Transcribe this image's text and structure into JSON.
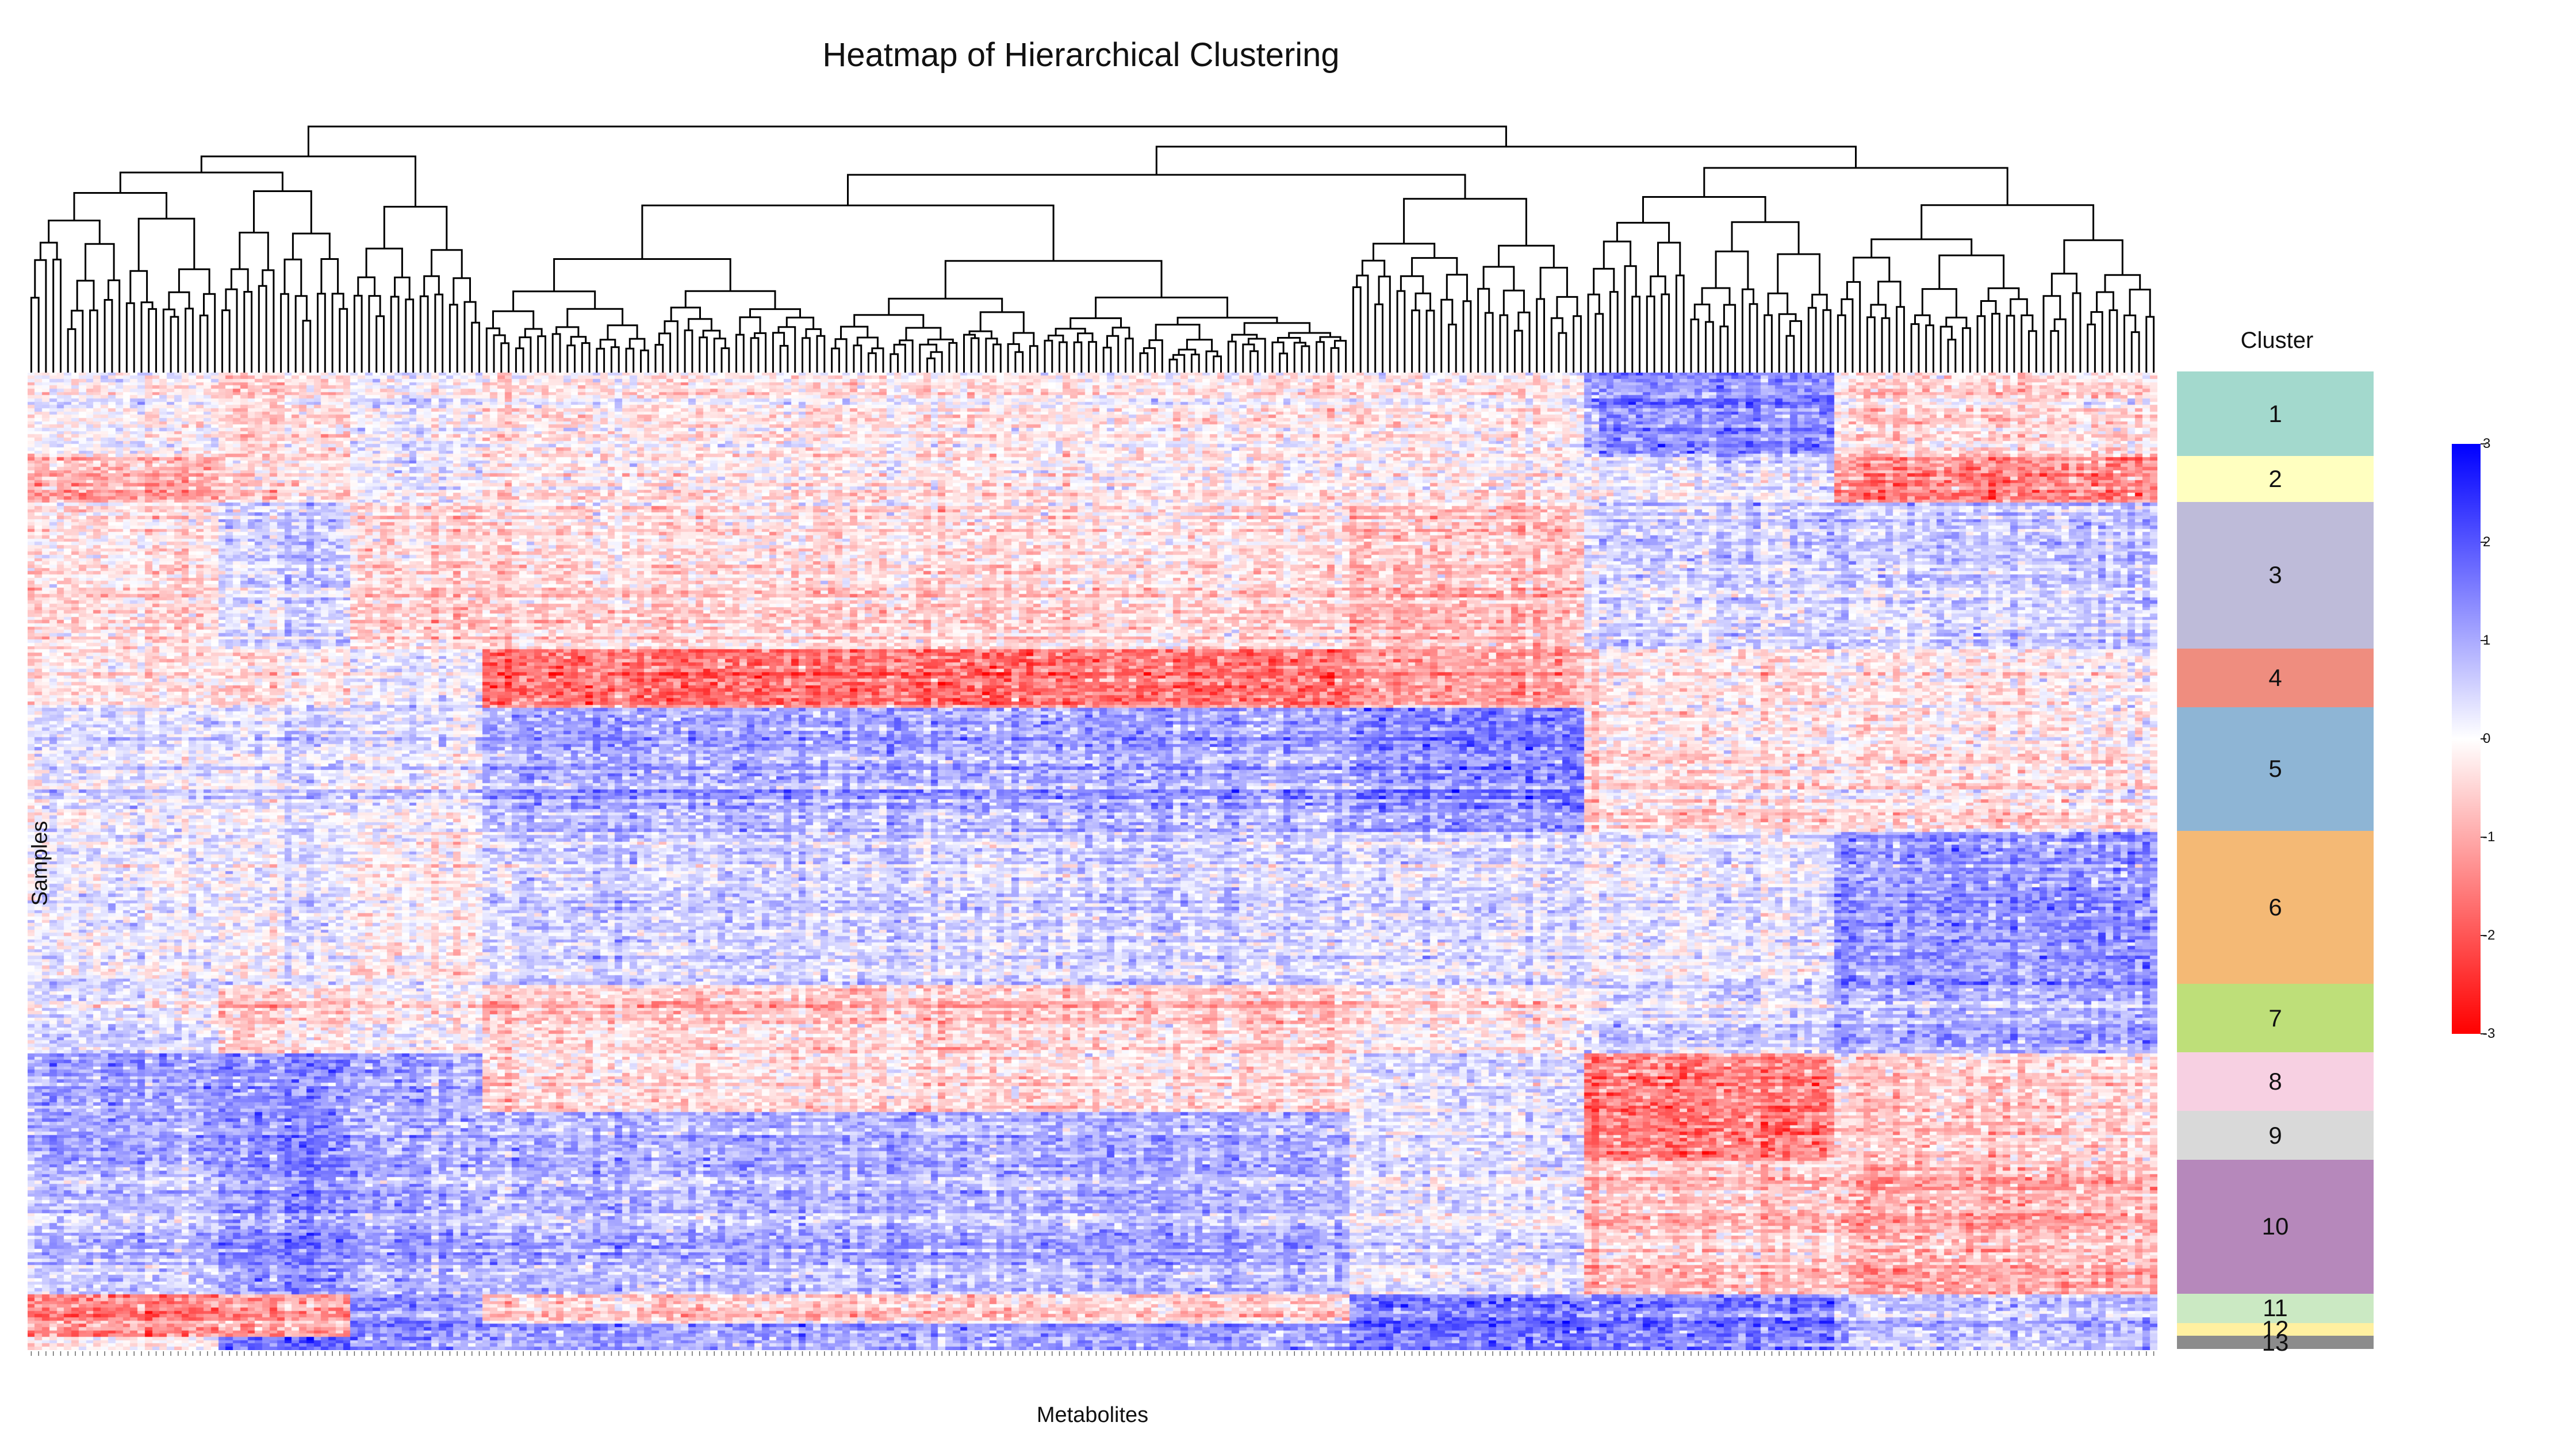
{
  "chart_data": {
    "type": "heatmap",
    "title": "Heatmap of Hierarchical Clustering",
    "xlabel": "Metabolites",
    "ylabel": "Samples",
    "n_columns": 290,
    "n_rows": 300,
    "colorscale": {
      "low": "#ff0000",
      "mid": "#ffffff",
      "high": "#0000ff"
    },
    "colorbar": {
      "range": [
        -3,
        3
      ],
      "ticks": [
        3,
        2,
        1,
        0,
        -1,
        -2,
        -3
      ],
      "placement": "right"
    },
    "legend_title": "Cluster",
    "clusters": [
      {
        "label": "1",
        "color": "#a3d9cd",
        "row_start": 0,
        "row_end": 26
      },
      {
        "label": "2",
        "color": "#ffffc0",
        "row_start": 26,
        "row_end": 40
      },
      {
        "label": "3",
        "color": "#bebbd9",
        "row_start": 40,
        "row_end": 85
      },
      {
        "label": "4",
        "color": "#ef8d7f",
        "row_start": 85,
        "row_end": 103
      },
      {
        "label": "5",
        "color": "#8eb5d5",
        "row_start": 103,
        "row_end": 141
      },
      {
        "label": "6",
        "color": "#f4b975",
        "row_start": 141,
        "row_end": 188
      },
      {
        "label": "7",
        "color": "#bedf79",
        "row_start": 188,
        "row_end": 209
      },
      {
        "label": "8",
        "color": "#f7d0e2",
        "row_start": 209,
        "row_end": 227
      },
      {
        "label": "9",
        "color": "#d9d9d9",
        "row_start": 227,
        "row_end": 242
      },
      {
        "label": "10",
        "color": "#b688bb",
        "row_start": 242,
        "row_end": 283
      },
      {
        "label": "11",
        "color": "#cbe9c3",
        "row_start": 283,
        "row_end": 292
      },
      {
        "label": "12",
        "color": "#fff0a0",
        "row_start": 292,
        "row_end": 296
      },
      {
        "label": "13",
        "color": "#8c8c8c",
        "row_start": 296,
        "row_end": 300
      }
    ],
    "column_groups": [
      {
        "col_start": 0,
        "col_end": 26,
        "pattern": [
          [
            26,
            40,
            -1.3
          ],
          [
            40,
            85,
            -0.4
          ],
          [
            85,
            103,
            -0.3
          ],
          [
            103,
            141,
            0.5
          ],
          [
            141,
            209,
            0.3
          ],
          [
            209,
            242,
            1.3
          ],
          [
            242,
            283,
            0.9
          ],
          [
            283,
            296,
            -1.8
          ]
        ]
      },
      {
        "col_start": 26,
        "col_end": 44,
        "pattern": [
          [
            0,
            40,
            -0.6
          ],
          [
            40,
            85,
            0.6
          ],
          [
            85,
            103,
            -0.4
          ],
          [
            103,
            141,
            0.5
          ],
          [
            141,
            188,
            0.2
          ],
          [
            188,
            209,
            -0.8
          ],
          [
            209,
            283,
            1.6
          ],
          [
            283,
            296,
            -1.5
          ],
          [
            296,
            300,
            2.4
          ]
        ]
      },
      {
        "col_start": 44,
        "col_end": 62,
        "pattern": [
          [
            0,
            40,
            0.2
          ],
          [
            40,
            85,
            -0.6
          ],
          [
            85,
            103,
            0.3
          ],
          [
            103,
            141,
            0.4
          ],
          [
            141,
            209,
            -0.2
          ],
          [
            209,
            283,
            1.2
          ],
          [
            283,
            300,
            1.6
          ]
        ]
      },
      {
        "col_start": 62,
        "col_end": 180,
        "pattern": [
          [
            0,
            40,
            -0.3
          ],
          [
            40,
            85,
            -0.5
          ],
          [
            85,
            103,
            -2.1
          ],
          [
            103,
            141,
            1.4
          ],
          [
            141,
            188,
            0.6
          ],
          [
            188,
            209,
            -0.9
          ],
          [
            209,
            227,
            -0.6
          ],
          [
            227,
            283,
            1.1
          ],
          [
            283,
            292,
            -0.7
          ],
          [
            292,
            300,
            1.4
          ]
        ]
      },
      {
        "col_start": 180,
        "col_end": 212,
        "pattern": [
          [
            0,
            40,
            -0.2
          ],
          [
            40,
            85,
            -0.9
          ],
          [
            85,
            103,
            -1.4
          ],
          [
            103,
            141,
            1.9
          ],
          [
            141,
            188,
            0.5
          ],
          [
            188,
            209,
            -0.4
          ],
          [
            209,
            283,
            0.4
          ],
          [
            283,
            300,
            2.1
          ]
        ]
      },
      {
        "col_start": 212,
        "col_end": 246,
        "pattern": [
          [
            0,
            26,
            1.7
          ],
          [
            26,
            40,
            0.3
          ],
          [
            40,
            85,
            0.7
          ],
          [
            85,
            141,
            -0.3
          ],
          [
            141,
            188,
            0.3
          ],
          [
            188,
            209,
            0.5
          ],
          [
            209,
            242,
            -2.0
          ],
          [
            242,
            283,
            -0.8
          ],
          [
            283,
            300,
            2.0
          ]
        ]
      },
      {
        "col_start": 246,
        "col_end": 290,
        "pattern": [
          [
            0,
            26,
            -0.6
          ],
          [
            26,
            40,
            -1.9
          ],
          [
            40,
            85,
            0.7
          ],
          [
            85,
            141,
            -0.2
          ],
          [
            141,
            188,
            1.5
          ],
          [
            188,
            209,
            1.0
          ],
          [
            209,
            242,
            -0.8
          ],
          [
            242,
            283,
            -1.2
          ],
          [
            283,
            300,
            0.9
          ]
        ]
      }
    ]
  }
}
